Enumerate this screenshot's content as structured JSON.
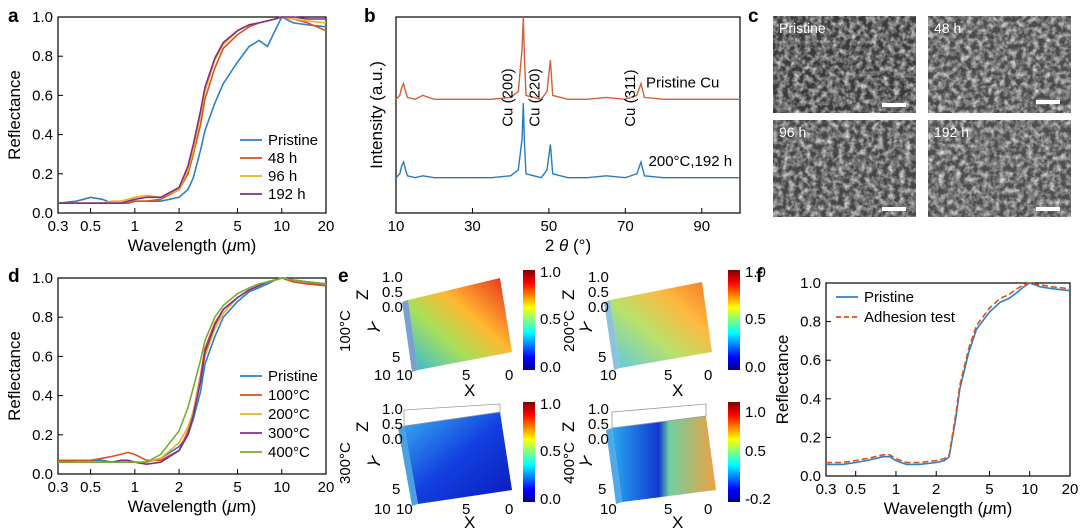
{
  "panel_letters": {
    "a": "a",
    "b": "b",
    "c": "c",
    "d": "d",
    "e": "e",
    "f": "f"
  },
  "colors": {
    "blue": "#2f7fc1",
    "red": "#d95319",
    "yellow": "#edb120",
    "purple": "#7e2f8e",
    "green": "#77ac30",
    "xrd_red": "#d2603a",
    "xrd_blue": "#2b7bb8"
  },
  "chart_data": [
    {
      "id": "a",
      "type": "line",
      "xlabel": "Wavelength (μm)",
      "ylabel": "Reflectance",
      "xscale": "log",
      "xlim": [
        0.3,
        20
      ],
      "ylim": [
        0,
        1.0
      ],
      "xticks": [
        "0.3",
        "0.5",
        "1",
        "2",
        "5",
        "10",
        "20"
      ],
      "yticks": [
        "0.0",
        "0.2",
        "0.4",
        "0.6",
        "0.8",
        "1.0"
      ],
      "legend": "lower-right",
      "series": [
        {
          "name": "Pristine",
          "color": "#2f7fc1",
          "x": [
            0.3,
            0.4,
            0.5,
            0.6,
            0.7,
            0.8,
            0.9,
            1,
            1.2,
            1.5,
            2,
            2.3,
            2.5,
            2.8,
            3,
            3.5,
            4,
            5,
            6,
            7,
            8,
            9,
            10,
            12,
            15,
            20
          ],
          "y": [
            0.05,
            0.06,
            0.08,
            0.07,
            0.05,
            0.05,
            0.05,
            0.06,
            0.06,
            0.06,
            0.08,
            0.12,
            0.18,
            0.32,
            0.42,
            0.56,
            0.66,
            0.77,
            0.85,
            0.88,
            0.85,
            0.93,
            1.0,
            0.97,
            0.96,
            0.95
          ]
        },
        {
          "name": "48 h",
          "color": "#d95319",
          "x": [
            0.3,
            0.4,
            0.5,
            0.6,
            0.7,
            0.8,
            0.9,
            1,
            1.2,
            1.5,
            2,
            2.3,
            2.5,
            2.8,
            3,
            3.5,
            4,
            5,
            6,
            7,
            8,
            9,
            10,
            12,
            15,
            20
          ],
          "y": [
            0.05,
            0.05,
            0.05,
            0.05,
            0.05,
            0.05,
            0.05,
            0.06,
            0.06,
            0.07,
            0.12,
            0.2,
            0.3,
            0.45,
            0.58,
            0.74,
            0.84,
            0.91,
            0.95,
            0.97,
            0.98,
            0.99,
            1.0,
            0.99,
            0.97,
            0.93
          ]
        },
        {
          "name": "96 h",
          "color": "#edb120",
          "x": [
            0.3,
            0.4,
            0.5,
            0.6,
            0.7,
            0.8,
            0.9,
            1,
            1.2,
            1.5,
            2,
            2.3,
            2.5,
            2.8,
            3,
            3.5,
            4,
            5,
            6,
            7,
            8,
            9,
            10,
            12,
            15,
            20
          ],
          "y": [
            0.05,
            0.05,
            0.05,
            0.05,
            0.06,
            0.06,
            0.07,
            0.08,
            0.09,
            0.08,
            0.12,
            0.22,
            0.32,
            0.5,
            0.62,
            0.78,
            0.86,
            0.93,
            0.96,
            0.97,
            0.98,
            0.99,
            1.0,
            0.99,
            0.98,
            0.97
          ]
        },
        {
          "name": "192 h",
          "color": "#7e2f8e",
          "x": [
            0.3,
            0.4,
            0.5,
            0.6,
            0.7,
            0.8,
            0.9,
            1,
            1.2,
            1.5,
            2,
            2.3,
            2.5,
            2.8,
            3,
            3.5,
            4,
            5,
            6,
            7,
            8,
            9,
            10,
            12,
            15,
            20
          ],
          "y": [
            0.05,
            0.05,
            0.05,
            0.05,
            0.05,
            0.05,
            0.06,
            0.07,
            0.08,
            0.08,
            0.13,
            0.24,
            0.35,
            0.52,
            0.64,
            0.79,
            0.87,
            0.93,
            0.96,
            0.97,
            0.98,
            0.99,
            1.0,
            1.0,
            0.99,
            0.99
          ]
        }
      ]
    },
    {
      "id": "b",
      "type": "line",
      "xlabel": "2 θ (°)",
      "ylabel": "Intensity (a.u.)",
      "xlim": [
        10,
        100
      ],
      "xticks": [
        "10",
        "30",
        "50",
        "70",
        "90"
      ],
      "series": [
        {
          "name": "Pristine Cu",
          "color": "#d2603a",
          "x": [
            10,
            11,
            11.5,
            12,
            12.5,
            13,
            15,
            17,
            20,
            25,
            30,
            35,
            40,
            42,
            43,
            43.3,
            43.6,
            44,
            48,
            49.5,
            50.4,
            51,
            55,
            60,
            65,
            70,
            73,
            74.1,
            75,
            80,
            85,
            90,
            95,
            100
          ],
          "y": [
            0.58,
            0.6,
            0.64,
            0.66,
            0.62,
            0.59,
            0.58,
            0.6,
            0.58,
            0.58,
            0.58,
            0.58,
            0.59,
            0.62,
            0.84,
            1.0,
            0.8,
            0.6,
            0.58,
            0.62,
            0.78,
            0.6,
            0.58,
            0.58,
            0.59,
            0.58,
            0.6,
            0.66,
            0.59,
            0.58,
            0.58,
            0.58,
            0.58,
            0.58
          ]
        },
        {
          "name": "200°C,192 h",
          "color": "#2b7bb8",
          "x": [
            10,
            11,
            11.5,
            12,
            12.5,
            13,
            15,
            17,
            20,
            25,
            30,
            35,
            40,
            42,
            43,
            43.3,
            43.6,
            44,
            48,
            49.5,
            50.4,
            51,
            55,
            60,
            65,
            70,
            73,
            74.1,
            75,
            80,
            85,
            90,
            95,
            100
          ],
          "y": [
            0.18,
            0.2,
            0.24,
            0.26,
            0.22,
            0.19,
            0.18,
            0.19,
            0.18,
            0.18,
            0.18,
            0.18,
            0.19,
            0.22,
            0.38,
            0.56,
            0.36,
            0.2,
            0.18,
            0.22,
            0.35,
            0.2,
            0.18,
            0.18,
            0.19,
            0.18,
            0.2,
            0.26,
            0.19,
            0.18,
            0.18,
            0.18,
            0.18,
            0.18
          ]
        }
      ],
      "annotations": [
        "Cu (200)",
        "Cu (220)",
        "Cu (311)"
      ]
    },
    {
      "id": "d",
      "type": "line",
      "xlabel": "Wavelength (μm)",
      "ylabel": "Reflectance",
      "xscale": "log",
      "xlim": [
        0.3,
        20
      ],
      "ylim": [
        0,
        1.0
      ],
      "xticks": [
        "0.3",
        "0.5",
        "1",
        "2",
        "5",
        "10",
        "20"
      ],
      "yticks": [
        "0.0",
        "0.2",
        "0.4",
        "0.6",
        "0.8",
        "1.0"
      ],
      "legend": "lower-right",
      "series": [
        {
          "name": "Pristine",
          "color": "#2f7fc1",
          "x": [
            0.3,
            0.4,
            0.5,
            0.6,
            0.7,
            0.8,
            0.9,
            1,
            1.2,
            1.5,
            2,
            2.3,
            2.5,
            2.8,
            3,
            3.5,
            4,
            5,
            6,
            7,
            8,
            9,
            10,
            12,
            15,
            20
          ],
          "y": [
            0.06,
            0.07,
            0.07,
            0.07,
            0.06,
            0.06,
            0.06,
            0.06,
            0.06,
            0.08,
            0.14,
            0.2,
            0.28,
            0.42,
            0.56,
            0.7,
            0.8,
            0.88,
            0.93,
            0.95,
            0.97,
            0.99,
            1.0,
            0.98,
            0.97,
            0.97
          ]
        },
        {
          "name": "100°C",
          "color": "#d95319",
          "x": [
            0.3,
            0.4,
            0.5,
            0.6,
            0.7,
            0.8,
            0.9,
            1,
            1.2,
            1.5,
            2,
            2.3,
            2.5,
            2.8,
            3,
            3.5,
            4,
            5,
            6,
            7,
            8,
            9,
            10,
            12,
            15,
            20
          ],
          "y": [
            0.07,
            0.07,
            0.07,
            0.08,
            0.09,
            0.1,
            0.11,
            0.1,
            0.07,
            0.07,
            0.12,
            0.22,
            0.32,
            0.5,
            0.64,
            0.77,
            0.84,
            0.9,
            0.94,
            0.96,
            0.98,
            0.99,
            1.0,
            0.98,
            0.97,
            0.96
          ]
        },
        {
          "name": "200°C",
          "color": "#edb120",
          "x": [
            0.3,
            0.4,
            0.5,
            0.6,
            0.7,
            0.8,
            0.9,
            1,
            1.2,
            1.5,
            2,
            2.3,
            2.5,
            2.8,
            3,
            3.5,
            4,
            5,
            6,
            7,
            8,
            9,
            10,
            12,
            15,
            20
          ],
          "y": [
            0.06,
            0.06,
            0.06,
            0.06,
            0.06,
            0.06,
            0.06,
            0.06,
            0.06,
            0.08,
            0.16,
            0.24,
            0.32,
            0.48,
            0.6,
            0.74,
            0.82,
            0.9,
            0.94,
            0.96,
            0.98,
            0.99,
            1.0,
            0.99,
            0.98,
            0.97
          ]
        },
        {
          "name": "300°C",
          "color": "#7e2f8e",
          "x": [
            0.3,
            0.4,
            0.5,
            0.6,
            0.7,
            0.8,
            0.9,
            1,
            1.2,
            1.5,
            2,
            2.3,
            2.5,
            2.8,
            3,
            3.5,
            4,
            5,
            6,
            7,
            8,
            9,
            10,
            12,
            15,
            20
          ],
          "y": [
            0.06,
            0.06,
            0.06,
            0.06,
            0.06,
            0.07,
            0.07,
            0.06,
            0.05,
            0.06,
            0.12,
            0.2,
            0.3,
            0.47,
            0.62,
            0.76,
            0.84,
            0.9,
            0.94,
            0.96,
            0.98,
            0.99,
            1.0,
            0.99,
            0.98,
            0.97
          ]
        },
        {
          "name": "400°C",
          "color": "#77ac30",
          "x": [
            0.3,
            0.4,
            0.5,
            0.6,
            0.7,
            0.8,
            0.9,
            1,
            1.2,
            1.5,
            2,
            2.3,
            2.5,
            2.8,
            3,
            3.5,
            4,
            5,
            6,
            7,
            8,
            9,
            10,
            12,
            15,
            20
          ],
          "y": [
            0.06,
            0.06,
            0.06,
            0.06,
            0.06,
            0.06,
            0.06,
            0.06,
            0.06,
            0.1,
            0.22,
            0.34,
            0.44,
            0.58,
            0.68,
            0.8,
            0.86,
            0.92,
            0.95,
            0.97,
            0.98,
            0.99,
            1.0,
            0.99,
            0.98,
            0.97
          ]
        }
      ]
    },
    {
      "id": "f",
      "type": "line",
      "xlabel": "Wavelength (μm)",
      "ylabel": "Reflectance",
      "xscale": "log",
      "xlim": [
        0.3,
        20
      ],
      "ylim": [
        0,
        1.0
      ],
      "xticks": [
        "0.3",
        "0.5",
        "1",
        "2",
        "5",
        "10",
        "20"
      ],
      "yticks": [
        "0.0",
        "0.2",
        "0.4",
        "0.6",
        "0.8",
        "1.0"
      ],
      "legend": "top-left",
      "series": [
        {
          "name": "Pristine",
          "color": "#2f7fc1",
          "dash": false,
          "x": [
            0.3,
            0.4,
            0.5,
            0.6,
            0.7,
            0.8,
            0.9,
            1,
            1.2,
            1.5,
            2,
            2.3,
            2.5,
            2.8,
            3,
            3.5,
            4,
            5,
            6,
            7,
            8,
            9,
            10,
            12,
            15,
            20
          ],
          "y": [
            0.06,
            0.06,
            0.07,
            0.08,
            0.09,
            0.1,
            0.1,
            0.08,
            0.06,
            0.06,
            0.07,
            0.08,
            0.1,
            0.3,
            0.45,
            0.64,
            0.76,
            0.85,
            0.9,
            0.92,
            0.95,
            0.98,
            1.0,
            0.98,
            0.97,
            0.96
          ]
        },
        {
          "name": "Adhesion test",
          "color": "#d95319",
          "dash": true,
          "x": [
            0.3,
            0.4,
            0.5,
            0.6,
            0.7,
            0.8,
            0.9,
            1,
            1.2,
            1.5,
            2,
            2.3,
            2.5,
            2.8,
            3,
            3.5,
            4,
            5,
            6,
            7,
            8,
            9,
            10,
            12,
            15,
            20
          ],
          "y": [
            0.07,
            0.07,
            0.08,
            0.09,
            0.1,
            0.11,
            0.11,
            0.09,
            0.07,
            0.07,
            0.08,
            0.09,
            0.11,
            0.32,
            0.47,
            0.66,
            0.78,
            0.87,
            0.92,
            0.94,
            0.97,
            0.99,
            1.0,
            0.99,
            0.98,
            0.97
          ]
        }
      ]
    }
  ],
  "panel_c": {
    "labels": [
      "Pristine",
      "48 h",
      "96 h",
      "192 h"
    ]
  },
  "panel_e": {
    "maps": [
      {
        "temp": "100°C",
        "cbar": [
          "1.0",
          "0.5",
          "0.0"
        ]
      },
      {
        "temp": "200°C",
        "cbar": [
          "1.0",
          "0.5",
          "0.0"
        ]
      },
      {
        "temp": "300°C",
        "cbar": [
          "1.0",
          "0.5",
          "0.0"
        ]
      },
      {
        "temp": "400°C",
        "cbar": [
          "1.0",
          "0.5",
          "-0.2"
        ]
      }
    ],
    "z_ticks": [
      "1.0",
      "0.5",
      "0.0"
    ],
    "xy_ticks": [
      "10",
      "5",
      "0"
    ],
    "axis_letters": {
      "x": "X",
      "y": "Y",
      "z": "Z"
    }
  }
}
